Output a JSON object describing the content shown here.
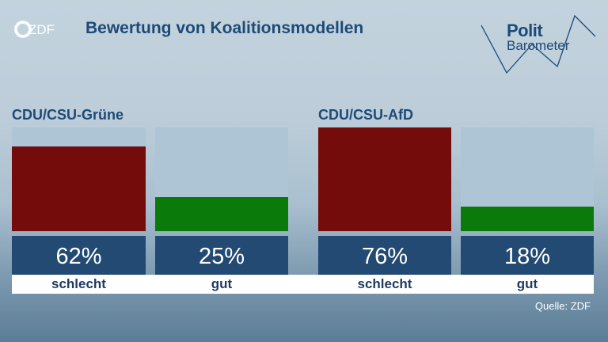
{
  "header": {
    "title": "Bewertung von Koalitionsmodellen",
    "logo_text": "ZDF",
    "brand_line1": "Polit",
    "brand_line2": "Barometer"
  },
  "source": "Quelle: ZDF",
  "colors": {
    "schlecht": "#740c0c",
    "gut": "#0a7a0a",
    "bar_background": "#aec5d6",
    "value_box": "#224a73",
    "title": "#1d4a78"
  },
  "chart_data": [
    {
      "type": "bar",
      "title": "CDU/CSU-Grüne",
      "categories": [
        "schlecht",
        "gut"
      ],
      "values": [
        62,
        25
      ],
      "value_labels": [
        "62%",
        "25%"
      ],
      "ylim": [
        0,
        76
      ]
    },
    {
      "type": "bar",
      "title": "CDU/CSU-AfD",
      "categories": [
        "schlecht",
        "gut"
      ],
      "values": [
        76,
        18
      ],
      "value_labels": [
        "76%",
        "18%"
      ],
      "ylim": [
        0,
        76
      ]
    }
  ]
}
